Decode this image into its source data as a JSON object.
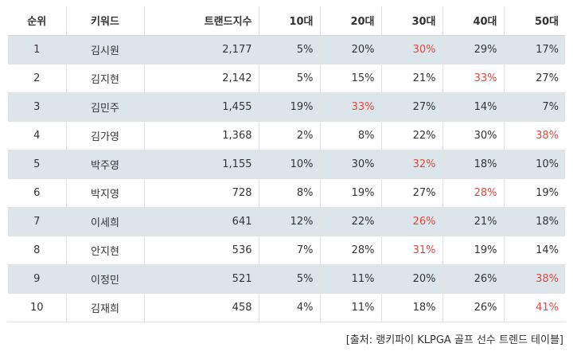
{
  "table": {
    "headers": [
      "순위",
      "키워드",
      "트랜드지수",
      "10대",
      "20대",
      "30대",
      "40대",
      "50대"
    ],
    "rows": [
      {
        "rank": "1",
        "keyword": "김시원",
        "index": "2,177",
        "v10": "5%",
        "v20": "20%",
        "v30": "30%",
        "v40": "29%",
        "v50": "17%",
        "highlight": "v30"
      },
      {
        "rank": "2",
        "keyword": "김지현",
        "index": "2,142",
        "v10": "5%",
        "v20": "15%",
        "v30": "21%",
        "v40": "33%",
        "v50": "27%",
        "highlight": "v40"
      },
      {
        "rank": "3",
        "keyword": "김민주",
        "index": "1,455",
        "v10": "19%",
        "v20": "33%",
        "v30": "27%",
        "v40": "14%",
        "v50": "7%",
        "highlight": "v20"
      },
      {
        "rank": "4",
        "keyword": "김가영",
        "index": "1,368",
        "v10": "2%",
        "v20": "8%",
        "v30": "22%",
        "v40": "30%",
        "v50": "38%",
        "highlight": "v50"
      },
      {
        "rank": "5",
        "keyword": "박주영",
        "index": "1,155",
        "v10": "10%",
        "v20": "30%",
        "v30": "32%",
        "v40": "18%",
        "v50": "10%",
        "highlight": "v30"
      },
      {
        "rank": "6",
        "keyword": "박지영",
        "index": "728",
        "v10": "8%",
        "v20": "19%",
        "v30": "27%",
        "v40": "28%",
        "v50": "19%",
        "highlight": "v40"
      },
      {
        "rank": "7",
        "keyword": "이세희",
        "index": "641",
        "v10": "12%",
        "v20": "22%",
        "v30": "26%",
        "v40": "21%",
        "v50": "18%",
        "highlight": "v30"
      },
      {
        "rank": "8",
        "keyword": "안지현",
        "index": "536",
        "v10": "7%",
        "v20": "28%",
        "v30": "31%",
        "v40": "19%",
        "v50": "14%",
        "highlight": "v30"
      },
      {
        "rank": "9",
        "keyword": "이정민",
        "index": "521",
        "v10": "5%",
        "v20": "11%",
        "v30": "20%",
        "v40": "26%",
        "v50": "38%",
        "highlight": "v50"
      },
      {
        "rank": "10",
        "keyword": "김재희",
        "index": "458",
        "v10": "4%",
        "v20": "11%",
        "v30": "18%",
        "v40": "26%",
        "v50": "41%",
        "highlight": "v50"
      }
    ]
  },
  "source": "[출처: 랭키파이 KLPGA 골프 선수 트렌드 테이블]",
  "colors": {
    "highlight": "#e0483f",
    "stripe": "#dce6ea",
    "border": "#e2e2e2"
  }
}
